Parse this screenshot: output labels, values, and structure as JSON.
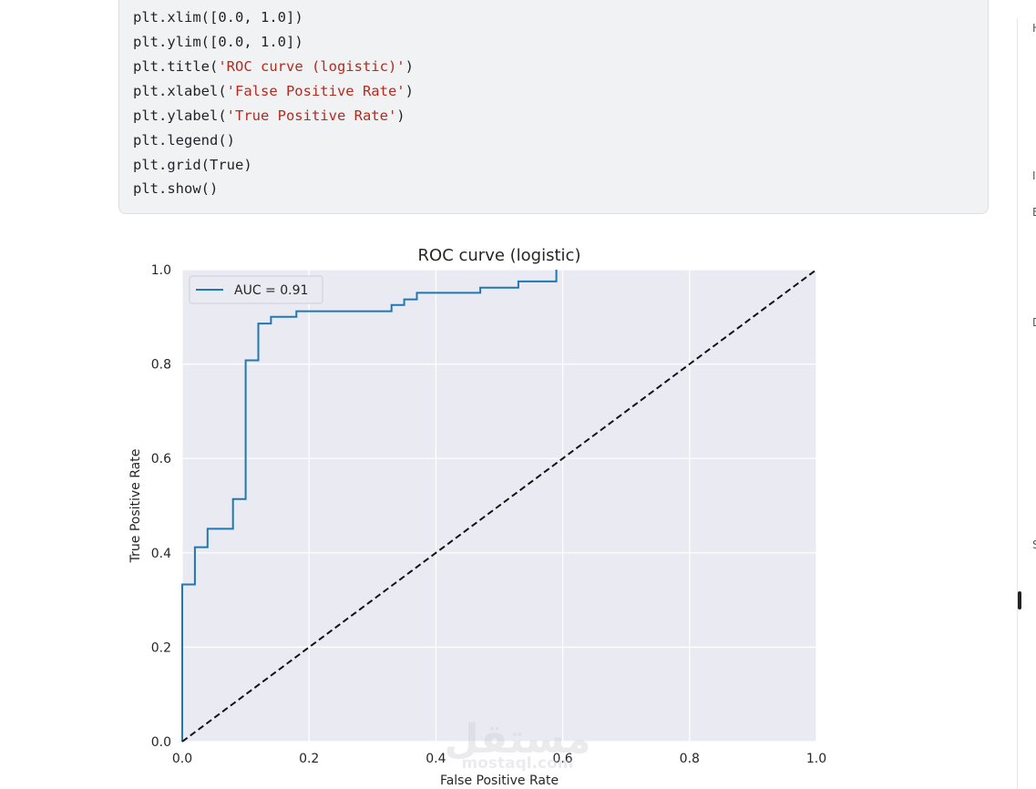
{
  "code": {
    "lines": [
      {
        "plain": "plt.xlim([",
        "num": "0.0, 1.0",
        "tail": "])"
      },
      {
        "plain": "plt.ylim([",
        "num": "0.0, 1.0",
        "tail": "])"
      },
      {
        "plain": "plt.title(",
        "str": "'ROC curve (logistic)'",
        "tail": ")"
      },
      {
        "plain": "plt.xlabel(",
        "str": "'False Positive Rate'",
        "tail": ")"
      },
      {
        "plain": "plt.ylabel(",
        "str": "'True Positive Rate'",
        "tail": ")"
      },
      {
        "plain": "plt.legend()"
      },
      {
        "plain": "plt.grid(True)"
      },
      {
        "plain": "plt.show()"
      }
    ]
  },
  "right_panel": {
    "letters": [
      "H",
      "I",
      "E",
      "D",
      "S"
    ]
  },
  "watermark": {
    "arabic": "مستقل",
    "latin": "mostaql.com"
  },
  "chart_data": {
    "type": "line",
    "title": "ROC curve (logistic)",
    "xlabel": "False Positive Rate",
    "ylabel": "True Positive Rate",
    "xlim": [
      0.0,
      1.0
    ],
    "ylim": [
      0.0,
      1.0
    ],
    "xticks": [
      "0.0",
      "0.2",
      "0.4",
      "0.6",
      "0.8",
      "1.0"
    ],
    "yticks": [
      "0.0",
      "0.2",
      "0.4",
      "0.6",
      "0.8",
      "1.0"
    ],
    "grid": true,
    "legend_position": "upper-left",
    "series": [
      {
        "name": "AUC = 0.91",
        "color": "#1f77b4",
        "style": "step",
        "x": [
          0.0,
          0.0,
          0.02,
          0.02,
          0.04,
          0.04,
          0.08,
          0.08,
          0.1,
          0.1,
          0.12,
          0.12,
          0.14,
          0.14,
          0.18,
          0.18,
          0.33,
          0.33,
          0.35,
          0.35,
          0.37,
          0.37,
          0.47,
          0.47,
          0.53,
          0.53,
          0.59,
          0.59
        ],
        "y": [
          0.0,
          0.333,
          0.333,
          0.412,
          0.412,
          0.451,
          0.451,
          0.514,
          0.514,
          0.808,
          0.808,
          0.886,
          0.886,
          0.9,
          0.9,
          0.912,
          0.912,
          0.925,
          0.925,
          0.937,
          0.937,
          0.951,
          0.951,
          0.962,
          0.962,
          0.975,
          0.975,
          1.0
        ]
      },
      {
        "name": "",
        "color": "#111111",
        "style": "dashed",
        "x": [
          0.0,
          1.0
        ],
        "y": [
          0.0,
          1.0
        ]
      }
    ]
  }
}
